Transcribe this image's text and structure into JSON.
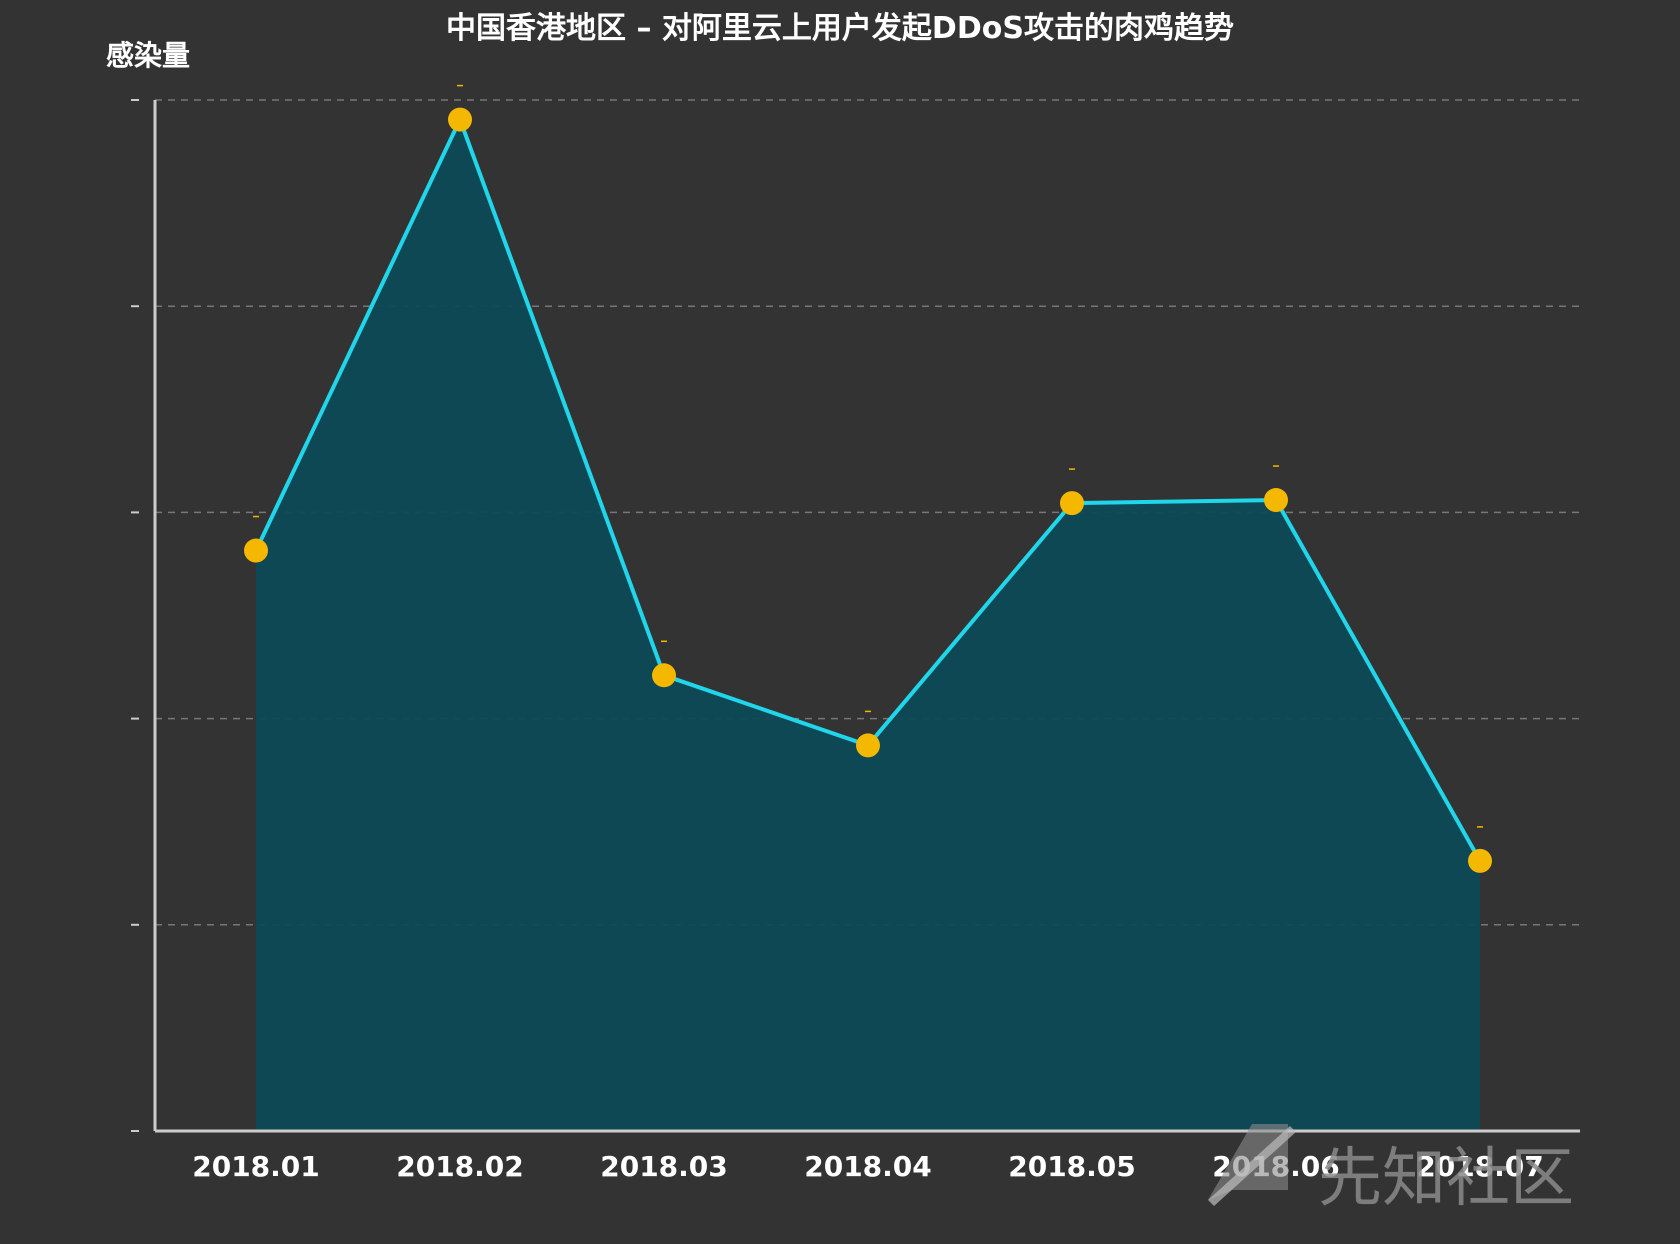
{
  "chart_data": {
    "type": "area",
    "title": "中国香港地区 – 对阿里云上用户发起DDoS攻击的肉鸡趋势",
    "xlabel": "",
    "ylabel": "感染量",
    "categories": [
      "2018.01",
      "2018.02",
      "2018.03",
      "2018.04",
      "2018.05",
      "2018.06",
      "2018.07"
    ],
    "series": [
      {
        "values": [
          56.3,
          98.1,
          44.2,
          37.4,
          60.9,
          61.2,
          26.2
        ]
      }
    ],
    "ylim": [
      0,
      100
    ],
    "y_tick_count": 5,
    "grid": true,
    "grid_style": "dashed",
    "markers": true,
    "drop_lines": true,
    "colors": {
      "background": "#333333",
      "line": "#1fd6ea",
      "area": "#0e4a57",
      "marker": "#f5b800",
      "grid": "#777777",
      "axis": "#cccccc"
    }
  },
  "watermark": {
    "text": "先知社区"
  }
}
